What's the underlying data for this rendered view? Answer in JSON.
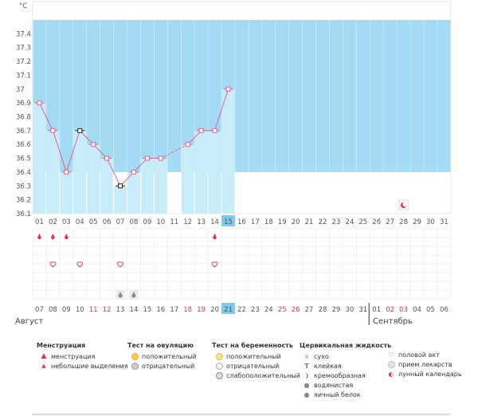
{
  "chart_data": {
    "type": "line",
    "ylabel": "°C",
    "ylim": [
      36.1,
      37.5
    ],
    "y_ticks": [
      "37.4",
      "37.3",
      "37.2",
      "37.1",
      "37",
      "36.9",
      "36.8",
      "36.7",
      "36.6",
      "36.5",
      "36.4",
      "36.3",
      "36.2",
      "36.1"
    ],
    "coverline": 36.4,
    "cycle_days": [
      "01",
      "02",
      "03",
      "04",
      "05",
      "06",
      "07",
      "08",
      "09",
      "10",
      "11",
      "12",
      "13",
      "14",
      "15",
      "16",
      "17",
      "18",
      "19",
      "20",
      "21",
      "22",
      "23",
      "24",
      "25",
      "26",
      "27",
      "28",
      "29",
      "30",
      "31"
    ],
    "current_cycle_day": 15,
    "series": [
      {
        "values": [
          36.9,
          36.7,
          36.4,
          36.7,
          36.6,
          36.5,
          36.3,
          36.4,
          36.5,
          36.5,
          null,
          36.6,
          36.7,
          36.7,
          37.0,
          null,
          null,
          null,
          null,
          null,
          null,
          null,
          null,
          null,
          null,
          null,
          null,
          null,
          null,
          null,
          null
        ]
      }
    ],
    "dashed_gaps": [
      [
        10,
        12
      ]
    ],
    "black_markers": [
      4,
      7
    ],
    "menstruation_days": [
      1,
      2,
      3,
      14
    ],
    "sex_days": [
      2,
      4,
      7,
      14
    ],
    "cervical_fluid_days": [
      7,
      8
    ],
    "lunar_calendar_day": 28,
    "dates": [
      "07",
      "08",
      "09",
      "10",
      "11",
      "12",
      "13",
      "14",
      "15",
      "16",
      "17",
      "18",
      "19",
      "20",
      "21",
      "22",
      "23",
      "24",
      "25",
      "26",
      "27",
      "28",
      "29",
      "30",
      "31",
      "01",
      "02",
      "03",
      "04",
      "05",
      "06"
    ],
    "weekend_dates": [
      4,
      5,
      11,
      12,
      18,
      19,
      26,
      27
    ],
    "current_date_index": 14,
    "month_break_index": 25,
    "colors": {
      "fill": "#a4dbf4",
      "bar": "#c9ecfb",
      "line": "#e65f8e",
      "hl": "#7fc9ea",
      "accent": "#e03355"
    }
  },
  "months": {
    "first": "Август",
    "second": "Сентябрь"
  },
  "legend": {
    "menstruation": {
      "title": "Менструация",
      "items": [
        {
          "icon": "drop-icon",
          "label": "менструация"
        },
        {
          "icon": "small-drop-icon",
          "label": "небольшие выделения"
        }
      ]
    },
    "ovulation": {
      "title": "Тест на овуляцию",
      "items": [
        {
          "icon": "sun-icon",
          "label": "положительный"
        },
        {
          "icon": "gray-circle-icon",
          "label": "отрицательный"
        }
      ]
    },
    "pregnancy": {
      "title": "Тест на беременность",
      "items": [
        {
          "icon": "positive-test-icon",
          "label": "положительный"
        },
        {
          "icon": "negative-test-icon",
          "label": "отрицательный"
        },
        {
          "icon": "weak-test-icon",
          "label": "слабоположительный"
        }
      ]
    },
    "cervical": {
      "title": "Цервикальная жидкость",
      "items": [
        {
          "icon": "cross-icon",
          "label": "сухо"
        },
        {
          "icon": "sticky-icon",
          "label": "клейкая"
        },
        {
          "icon": "cream-icon",
          "label": "кремообразная"
        },
        {
          "icon": "water-drop-icon",
          "label": "водянистая"
        },
        {
          "icon": "egg-white-icon",
          "label": "яичный белок"
        }
      ]
    },
    "other": {
      "items": [
        {
          "icon": "heart-icon",
          "label": "половой акт"
        },
        {
          "icon": "pill-icon",
          "label": "прием лекарств"
        },
        {
          "icon": "moon-icon",
          "label": "лунный календарь"
        }
      ]
    }
  }
}
